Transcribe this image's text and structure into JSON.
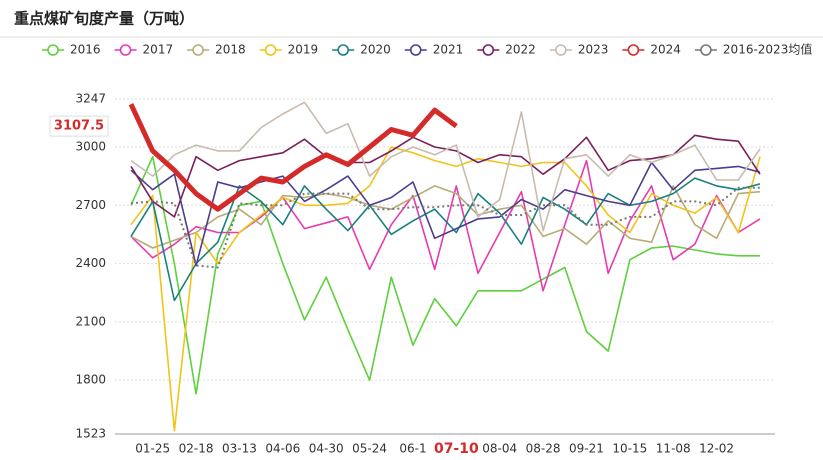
{
  "chart_data": {
    "type": "line",
    "title": "重点煤矿旬度产量（万吨）",
    "categories": [
      null,
      "01-25",
      null,
      "02-18",
      null,
      "03-13",
      null,
      "04-06",
      null,
      "04-30",
      null,
      "05-24",
      null,
      "06-1",
      null,
      "07-10",
      null,
      "08-04",
      null,
      "08-28",
      null,
      "09-21",
      null,
      "10-15",
      null,
      "11-08",
      null,
      "12-02",
      null,
      null
    ],
    "highlight_category": "07-10",
    "ylim": [
      1523,
      3247
    ],
    "yticks": [
      1523,
      1800,
      2100,
      2400,
      2700,
      3000,
      3247
    ],
    "grid": true,
    "series": [
      {
        "name": "2016",
        "color": "#5dd03c",
        "values": [
          2700,
          2950,
          2400,
          1730,
          2450,
          2700,
          2720,
          2400,
          2110,
          2330,
          2060,
          1800,
          2330,
          1980,
          2220,
          2080,
          2260,
          2260,
          2260,
          2320,
          2380,
          2050,
          1950,
          2420,
          2480,
          2490,
          2470,
          2450,
          2440,
          2440
        ]
      },
      {
        "name": "2017",
        "color": "#e83ab0",
        "values": [
          2540,
          2430,
          2500,
          2590,
          2560,
          2560,
          2640,
          2740,
          2580,
          2610,
          2640,
          2370,
          2600,
          2750,
          2370,
          2800,
          2350,
          2560,
          2770,
          2260,
          2600,
          2930,
          2350,
          2620,
          2800,
          2420,
          2500,
          2750,
          2560,
          2630
        ]
      },
      {
        "name": "2018",
        "color": "#b7ab76",
        "values": [
          2540,
          2480,
          2520,
          2560,
          2640,
          2680,
          2600,
          2750,
          2740,
          2760,
          2740,
          2700,
          2680,
          2740,
          2800,
          2760,
          2650,
          2680,
          2700,
          2540,
          2580,
          2500,
          2620,
          2530,
          2510,
          2800,
          2600,
          2530,
          2760,
          2770
        ]
      },
      {
        "name": "2019",
        "color": "#f0c419",
        "values": [
          2600,
          2750,
          1540,
          2560,
          2400,
          2560,
          2650,
          2740,
          2700,
          2700,
          2710,
          2800,
          3000,
          2970,
          2930,
          2900,
          2940,
          2920,
          2900,
          2920,
          2920,
          2800,
          2650,
          2560,
          2760,
          2700,
          2660,
          2740,
          2560,
          2950
        ]
      },
      {
        "name": "2020",
        "color": "#1a8080",
        "values": [
          2540,
          2720,
          2210,
          2400,
          2510,
          2800,
          2720,
          2600,
          2800,
          2680,
          2570,
          2700,
          2550,
          2620,
          2680,
          2560,
          2760,
          2660,
          2500,
          2740,
          2680,
          2600,
          2760,
          2700,
          2720,
          2760,
          2840,
          2800,
          2780,
          2810
        ]
      },
      {
        "name": "2021",
        "color": "#4d3d8f",
        "values": [
          2880,
          2780,
          2860,
          2390,
          2820,
          2790,
          2820,
          2850,
          2720,
          2780,
          2850,
          2700,
          2740,
          2820,
          2530,
          2580,
          2630,
          2640,
          2730,
          2680,
          2780,
          2750,
          2720,
          2700,
          2920,
          2780,
          2880,
          2890,
          2900,
          2870
        ]
      },
      {
        "name": "2022",
        "color": "#7a1f5c",
        "values": [
          2900,
          2720,
          2640,
          2950,
          2880,
          2930,
          2950,
          2970,
          3040,
          2950,
          2920,
          2920,
          2980,
          3050,
          3000,
          2980,
          2920,
          2960,
          2950,
          2860,
          2940,
          3050,
          2880,
          2930,
          2940,
          2960,
          3060,
          3040,
          3030,
          2860
        ]
      },
      {
        "name": "2023",
        "color": "#c8bcae",
        "values": [
          2930,
          2850,
          2960,
          3010,
          2980,
          2980,
          3100,
          3170,
          3230,
          3070,
          3120,
          2850,
          2950,
          3000,
          2960,
          3010,
          2640,
          2730,
          3180,
          2570,
          2940,
          2960,
          2850,
          2960,
          2920,
          2960,
          3010,
          2830,
          2830,
          2990
        ]
      },
      {
        "name": "2024",
        "color": "#d42a2a",
        "values": [
          3220,
          2980,
          2880,
          2760,
          2680,
          2760,
          2840,
          2820,
          2900,
          2960,
          2910,
          3000,
          3090,
          3060,
          3190,
          3107.5,
          null,
          null,
          null,
          null,
          null,
          null,
          null,
          null,
          null,
          null,
          null,
          null,
          null,
          null
        ]
      },
      {
        "name": "2016-2023均值",
        "color": "#777777",
        "dashed": true,
        "values": [
          2710,
          2720,
          2710,
          2390,
          2380,
          2710,
          2700,
          2700,
          2760,
          2760,
          2760,
          2680,
          2680,
          2690,
          2690,
          2700,
          2700,
          2650,
          2650,
          2700,
          2700,
          2600,
          2600,
          2640,
          2640,
          2720,
          2720,
          2700,
          2790,
          2790
        ]
      }
    ]
  }
}
